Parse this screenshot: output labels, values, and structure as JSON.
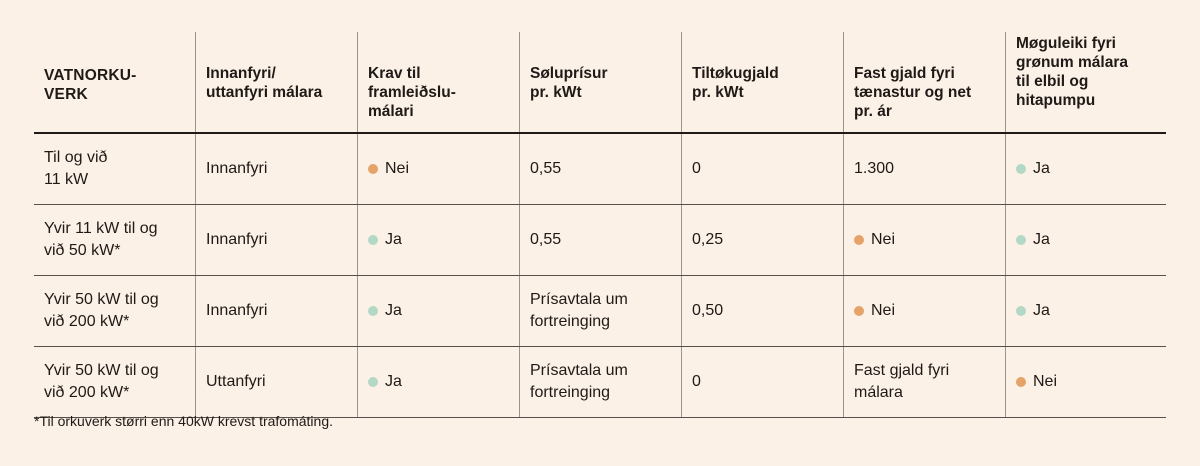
{
  "colors": {
    "background": "#fbf1e6",
    "yes_dot": "#b3d8c6",
    "no_dot": "#e5a269"
  },
  "table": {
    "headers": [
      "VATNORKU-\nVERK",
      "Innanfyri/\nuttanfyri málara",
      "Krav til\nframleiðslu-\nmálari",
      "Søluprísur\npr. kWt",
      "Tiltøkugjald\npr. kWt",
      "Fast gjald fyri\ntænastur og net\npr. ár",
      "Møguleiki fyri\ngrønum málara\ntil elbil og\nhitapumpu"
    ],
    "rows": [
      [
        "Til og við\n11 kW",
        "Innanfyri",
        "Nei",
        "0,55",
        "0",
        "1.300",
        "Ja"
      ],
      [
        "Yvir 11 kW til og\nvið 50 kW*",
        "Innanfyri",
        "Ja",
        "0,55",
        "0,25",
        "Nei",
        "Ja"
      ],
      [
        "Yvir 50 kW til og\nvið 200 kW*",
        "Innanfyri",
        "Ja",
        "Prísavtala um\nfortreinging",
        "0,50",
        "Nei",
        "Ja"
      ],
      [
        "Yvir 50 kW til og\nvið 200 kW*",
        "Uttanfyri",
        "Ja",
        "Prísavtala um\nfortreinging",
        "0",
        "Fast gjald fyri\nmálara",
        "Nei"
      ]
    ]
  },
  "footnote": "*Til orkuverk størri enn 40kW krevst trafomáting."
}
